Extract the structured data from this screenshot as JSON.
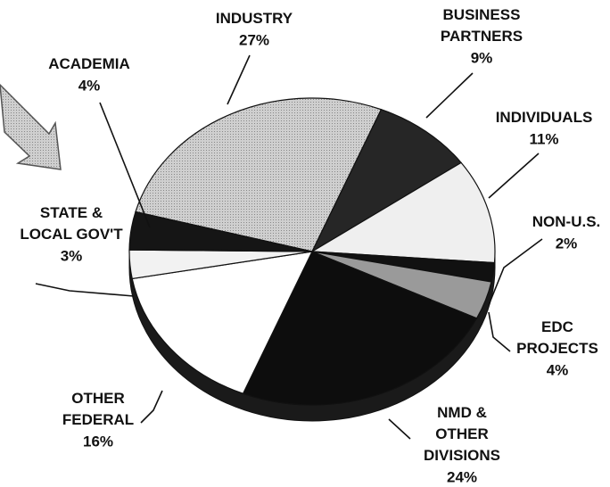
{
  "chart_data": {
    "type": "pie",
    "categories": [
      "INDUSTRY",
      "BUSINESS\nPARTNERS",
      "INDIVIDUALS",
      "NON-U.S.",
      "EDC\nPROJECTS",
      "NMD &\nOTHER\nDIVISIONS",
      "OTHER\nFEDERAL",
      "STATE &\nLOCAL GOV'T",
      "ACADEMIA"
    ],
    "values": [
      27,
      9,
      11,
      2,
      4,
      24,
      16,
      3,
      4
    ],
    "value_labels": [
      "27%",
      "9%",
      "11%",
      "2%",
      "4%",
      "24%",
      "16%",
      "3%",
      "4%"
    ],
    "colors": [
      "#5a5a5a",
      "#262626",
      "#efefef",
      "#111111",
      "#9a9a9a",
      "#0d0d0d",
      "#ffffff",
      "#f2f2f2",
      "#151515"
    ]
  }
}
